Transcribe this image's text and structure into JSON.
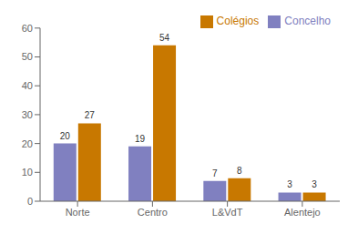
{
  "chart_data": {
    "type": "bar",
    "categories": [
      "Norte",
      "Centro",
      "L&VdT",
      "Alentejo"
    ],
    "series": [
      {
        "name": "Concelho",
        "color": "#8080c0",
        "values": [
          20,
          19,
          7,
          3
        ]
      },
      {
        "name": "Colégios",
        "color": "#c87800",
        "values": [
          27,
          54,
          8,
          3
        ]
      }
    ],
    "ylim": [
      0,
      60
    ],
    "yticks": [
      0,
      10,
      20,
      30,
      40,
      50,
      60
    ],
    "grid": false,
    "legend": "upper right",
    "data_labels": true
  }
}
